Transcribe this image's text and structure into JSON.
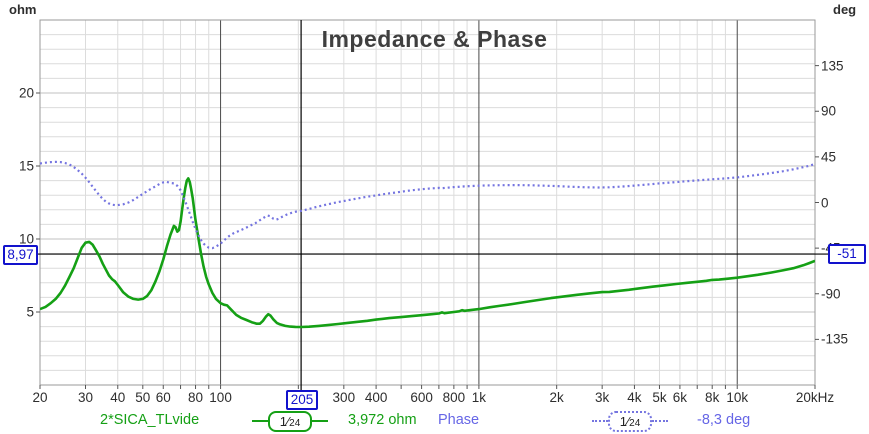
{
  "header": {
    "title": "Impedance & Phase",
    "left_axis_unit": "ohm",
    "right_axis_unit": "deg"
  },
  "cursor": {
    "freq_label": "205",
    "impedance_label": "8,97",
    "phase_label": "-51"
  },
  "legend": {
    "trace1_name": "2*SICA_TLvide",
    "trace1_value": "3,972 ohm",
    "trace2_name": "Phase",
    "trace2_value": "-8,3 deg",
    "smoothing_num": "1⁄",
    "smoothing_den": "24"
  },
  "colors": {
    "impedance": "#15a015",
    "phase": "#7575e0",
    "cursor_line": "#000000",
    "grid_minor": "#dcdcdc",
    "grid_major": "#c2c2c2",
    "grid_decade": "#4a4a4a",
    "border": "#9a9a9a"
  },
  "chart_data": {
    "type": "line",
    "title": "Impedance & Phase",
    "x_axis": {
      "scale": "log",
      "min_hz": 20,
      "max_hz": 20000,
      "gridlines_hz": [
        30,
        40,
        50,
        60,
        70,
        80,
        90,
        100,
        200,
        300,
        400,
        500,
        600,
        700,
        800,
        900,
        1000,
        2000,
        3000,
        4000,
        5000,
        6000,
        7000,
        8000,
        9000,
        10000
      ],
      "decade_lines_hz": [
        100,
        1000,
        10000
      ],
      "labels": [
        {
          "f": 20,
          "text": "20"
        },
        {
          "f": 30,
          "text": "30"
        },
        {
          "f": 40,
          "text": "40"
        },
        {
          "f": 50,
          "text": "50"
        },
        {
          "f": 60,
          "text": "60"
        },
        {
          "f": 80,
          "text": "80"
        },
        {
          "f": 100,
          "text": "100"
        },
        {
          "f": 300,
          "text": "300"
        },
        {
          "f": 400,
          "text": "400"
        },
        {
          "f": 600,
          "text": "600"
        },
        {
          "f": 800,
          "text": "800"
        },
        {
          "f": 1000,
          "text": "1k"
        },
        {
          "f": 2000,
          "text": "2k"
        },
        {
          "f": 3000,
          "text": "3k"
        },
        {
          "f": 4000,
          "text": "4k"
        },
        {
          "f": 5000,
          "text": "5k"
        },
        {
          "f": 6000,
          "text": "6k"
        },
        {
          "f": 8000,
          "text": "8k"
        },
        {
          "f": 10000,
          "text": "10k"
        },
        {
          "f": 20000,
          "text": "20kHz"
        }
      ]
    },
    "y_left": {
      "unit": "ohm",
      "min": 0,
      "max": 25,
      "minor_step": 1,
      "labels": [
        {
          "v": 5,
          "text": "5"
        },
        {
          "v": 10,
          "text": "10"
        },
        {
          "v": 15,
          "text": "15"
        },
        {
          "v": 20,
          "text": "20"
        }
      ],
      "major_values": [
        5,
        10,
        15,
        20
      ]
    },
    "y_right": {
      "unit": "deg",
      "min": -180,
      "max": 180,
      "labels": [
        {
          "v": 135,
          "text": "135"
        },
        {
          "v": 90,
          "text": "90"
        },
        {
          "v": 45,
          "text": "45"
        },
        {
          "v": 0,
          "text": "0"
        },
        {
          "v": -45,
          "text": "-45"
        },
        {
          "v": -90,
          "text": "-90"
        },
        {
          "v": -135,
          "text": "-135"
        }
      ]
    },
    "cursor": {
      "x_hz": 205,
      "impedance_ohm": 8.97,
      "phase_deg": -51
    },
    "series": [
      {
        "name": "2*SICA_TLvide",
        "axis": "left",
        "unit": "ohm",
        "style": "solid",
        "value_at_cursor": "3,972 ohm",
        "points": [
          [
            20,
            5.2
          ],
          [
            21,
            5.35
          ],
          [
            22,
            5.6
          ],
          [
            23,
            5.9
          ],
          [
            24,
            6.3
          ],
          [
            25,
            6.8
          ],
          [
            26,
            7.4
          ],
          [
            27,
            8.0
          ],
          [
            28,
            8.7
          ],
          [
            29,
            9.4
          ],
          [
            30,
            9.75
          ],
          [
            31,
            9.8
          ],
          [
            32,
            9.6
          ],
          [
            33,
            9.2
          ],
          [
            34,
            8.8
          ],
          [
            35,
            8.3
          ],
          [
            36,
            7.9
          ],
          [
            37,
            7.5
          ],
          [
            38,
            7.25
          ],
          [
            39,
            7.1
          ],
          [
            40,
            6.85
          ],
          [
            41,
            6.6
          ],
          [
            42,
            6.35
          ],
          [
            44,
            6.05
          ],
          [
            46,
            5.9
          ],
          [
            48,
            5.85
          ],
          [
            50,
            5.9
          ],
          [
            52,
            6.1
          ],
          [
            54,
            6.5
          ],
          [
            56,
            7.1
          ],
          [
            58,
            7.8
          ],
          [
            60,
            8.6
          ],
          [
            62,
            9.5
          ],
          [
            64,
            10.3
          ],
          [
            66,
            10.9
          ],
          [
            67,
            10.8
          ],
          [
            68,
            10.5
          ],
          [
            69,
            10.6
          ],
          [
            70,
            11.2
          ],
          [
            71,
            12.0
          ],
          [
            72,
            12.8
          ],
          [
            73,
            13.5
          ],
          [
            74,
            14.0
          ],
          [
            75,
            14.15
          ],
          [
            76,
            13.9
          ],
          [
            77,
            13.4
          ],
          [
            78,
            12.8
          ],
          [
            80,
            11.3
          ],
          [
            82,
            10.1
          ],
          [
            84,
            9.0
          ],
          [
            86,
            8.1
          ],
          [
            88,
            7.4
          ],
          [
            90,
            6.9
          ],
          [
            93,
            6.3
          ],
          [
            96,
            5.9
          ],
          [
            100,
            5.6
          ],
          [
            103,
            5.5
          ],
          [
            106,
            5.45
          ],
          [
            110,
            5.15
          ],
          [
            115,
            4.8
          ],
          [
            120,
            4.6
          ],
          [
            126,
            4.45
          ],
          [
            132,
            4.3
          ],
          [
            138,
            4.2
          ],
          [
            142,
            4.2
          ],
          [
            146,
            4.4
          ],
          [
            150,
            4.7
          ],
          [
            153,
            4.85
          ],
          [
            156,
            4.75
          ],
          [
            160,
            4.5
          ],
          [
            165,
            4.25
          ],
          [
            170,
            4.15
          ],
          [
            178,
            4.05
          ],
          [
            186,
            4.0
          ],
          [
            195,
            3.98
          ],
          [
            205,
            3.97
          ],
          [
            220,
            3.99
          ],
          [
            240,
            4.05
          ],
          [
            260,
            4.1
          ],
          [
            285,
            4.18
          ],
          [
            310,
            4.25
          ],
          [
            340,
            4.33
          ],
          [
            370,
            4.4
          ],
          [
            400,
            4.48
          ],
          [
            450,
            4.58
          ],
          [
            500,
            4.65
          ],
          [
            550,
            4.72
          ],
          [
            600,
            4.78
          ],
          [
            650,
            4.84
          ],
          [
            700,
            4.9
          ],
          [
            720,
            4.98
          ],
          [
            735,
            4.92
          ],
          [
            760,
            4.95
          ],
          [
            800,
            5.0
          ],
          [
            840,
            5.05
          ],
          [
            860,
            5.12
          ],
          [
            880,
            5.08
          ],
          [
            920,
            5.12
          ],
          [
            1000,
            5.2
          ],
          [
            1100,
            5.32
          ],
          [
            1200,
            5.42
          ],
          [
            1350,
            5.55
          ],
          [
            1500,
            5.68
          ],
          [
            1700,
            5.82
          ],
          [
            1900,
            5.95
          ],
          [
            2100,
            6.05
          ],
          [
            2400,
            6.18
          ],
          [
            2700,
            6.28
          ],
          [
            3000,
            6.36
          ],
          [
            3200,
            6.38
          ],
          [
            3500,
            6.45
          ],
          [
            3800,
            6.52
          ],
          [
            4200,
            6.62
          ],
          [
            4700,
            6.73
          ],
          [
            5200,
            6.82
          ],
          [
            5800,
            6.92
          ],
          [
            6400,
            7.0
          ],
          [
            7000,
            7.07
          ],
          [
            7600,
            7.14
          ],
          [
            8000,
            7.2
          ],
          [
            8500,
            7.22
          ],
          [
            9200,
            7.28
          ],
          [
            10000,
            7.35
          ],
          [
            11000,
            7.45
          ],
          [
            12000,
            7.55
          ],
          [
            13500,
            7.7
          ],
          [
            15000,
            7.85
          ],
          [
            16500,
            8.0
          ],
          [
            18000,
            8.2
          ],
          [
            19000,
            8.35
          ],
          [
            20000,
            8.5
          ]
        ]
      },
      {
        "name": "Phase",
        "axis": "right",
        "unit": "deg",
        "style": "dotted",
        "value_at_cursor": "-8,3 deg",
        "points": [
          [
            20,
            38.5
          ],
          [
            21,
            39.3
          ],
          [
            22,
            39.8
          ],
          [
            23,
            40
          ],
          [
            24,
            39.8
          ],
          [
            25,
            39
          ],
          [
            26,
            37.5
          ],
          [
            27,
            35
          ],
          [
            28,
            32
          ],
          [
            29,
            28.5
          ],
          [
            30,
            24.5
          ],
          [
            31,
            20
          ],
          [
            32,
            15.5
          ],
          [
            33,
            11
          ],
          [
            34,
            7
          ],
          [
            35,
            3.5
          ],
          [
            36,
            0.8
          ],
          [
            37,
            -1
          ],
          [
            38,
            -2.2
          ],
          [
            39,
            -2.6
          ],
          [
            40,
            -2.6
          ],
          [
            42,
            -1.8
          ],
          [
            44,
            0
          ],
          [
            46,
            2.5
          ],
          [
            48,
            5.5
          ],
          [
            50,
            8.5
          ],
          [
            53,
            12.5
          ],
          [
            56,
            16
          ],
          [
            58,
            18.2
          ],
          [
            60,
            19.8
          ],
          [
            62,
            20.3
          ],
          [
            64,
            19.2
          ],
          [
            66,
            18.8
          ],
          [
            68,
            16.5
          ],
          [
            70,
            12
          ],
          [
            72,
            5
          ],
          [
            74,
            -3
          ],
          [
            76,
            -11
          ],
          [
            78,
            -19
          ],
          [
            80,
            -26
          ],
          [
            82,
            -32
          ],
          [
            84,
            -37
          ],
          [
            86,
            -40.5
          ],
          [
            88,
            -43
          ],
          [
            90,
            -44.5
          ],
          [
            93,
            -45
          ],
          [
            96,
            -43.5
          ],
          [
            100,
            -40.5
          ],
          [
            104,
            -36.5
          ],
          [
            108,
            -33
          ],
          [
            112,
            -30.5
          ],
          [
            118,
            -28
          ],
          [
            124,
            -25.5
          ],
          [
            130,
            -23
          ],
          [
            136,
            -20.5
          ],
          [
            142,
            -17.5
          ],
          [
            148,
            -14.5
          ],
          [
            152,
            -12.8
          ],
          [
            156,
            -13.5
          ],
          [
            160,
            -16
          ],
          [
            164,
            -17
          ],
          [
            168,
            -16
          ],
          [
            174,
            -13.8
          ],
          [
            180,
            -12
          ],
          [
            188,
            -10.3
          ],
          [
            196,
            -9
          ],
          [
            205,
            -8.3
          ],
          [
            215,
            -7
          ],
          [
            230,
            -5
          ],
          [
            245,
            -3.3
          ],
          [
            260,
            -1.8
          ],
          [
            280,
            0
          ],
          [
            300,
            1.5
          ],
          [
            330,
            3.5
          ],
          [
            360,
            5.2
          ],
          [
            400,
            7
          ],
          [
            440,
            8.7
          ],
          [
            480,
            10
          ],
          [
            530,
            11.5
          ],
          [
            580,
            12.7
          ],
          [
            640,
            13.7
          ],
          [
            700,
            14.4
          ],
          [
            720,
            14.1
          ],
          [
            740,
            14.4
          ],
          [
            800,
            15.2
          ],
          [
            880,
            15.9
          ],
          [
            960,
            16.4
          ],
          [
            1050,
            16.8
          ],
          [
            1200,
            17.1
          ],
          [
            1400,
            17.2
          ],
          [
            1600,
            17
          ],
          [
            1800,
            16.6
          ],
          [
            2000,
            16.2
          ],
          [
            2300,
            15.5
          ],
          [
            2600,
            15
          ],
          [
            2900,
            14.8
          ],
          [
            3200,
            15
          ],
          [
            3600,
            15.8
          ],
          [
            4000,
            16.7
          ],
          [
            4500,
            17.8
          ],
          [
            5000,
            18.8
          ],
          [
            5600,
            19.8
          ],
          [
            6300,
            20.9
          ],
          [
            7000,
            21.8
          ],
          [
            8000,
            22.9
          ],
          [
            9000,
            23.8
          ],
          [
            10000,
            24.8
          ],
          [
            11000,
            26
          ],
          [
            12000,
            27.2
          ],
          [
            13500,
            29
          ],
          [
            15000,
            30.8
          ],
          [
            16500,
            32.7
          ],
          [
            18000,
            34.8
          ],
          [
            19000,
            36.2
          ],
          [
            20000,
            38
          ]
        ]
      }
    ]
  }
}
